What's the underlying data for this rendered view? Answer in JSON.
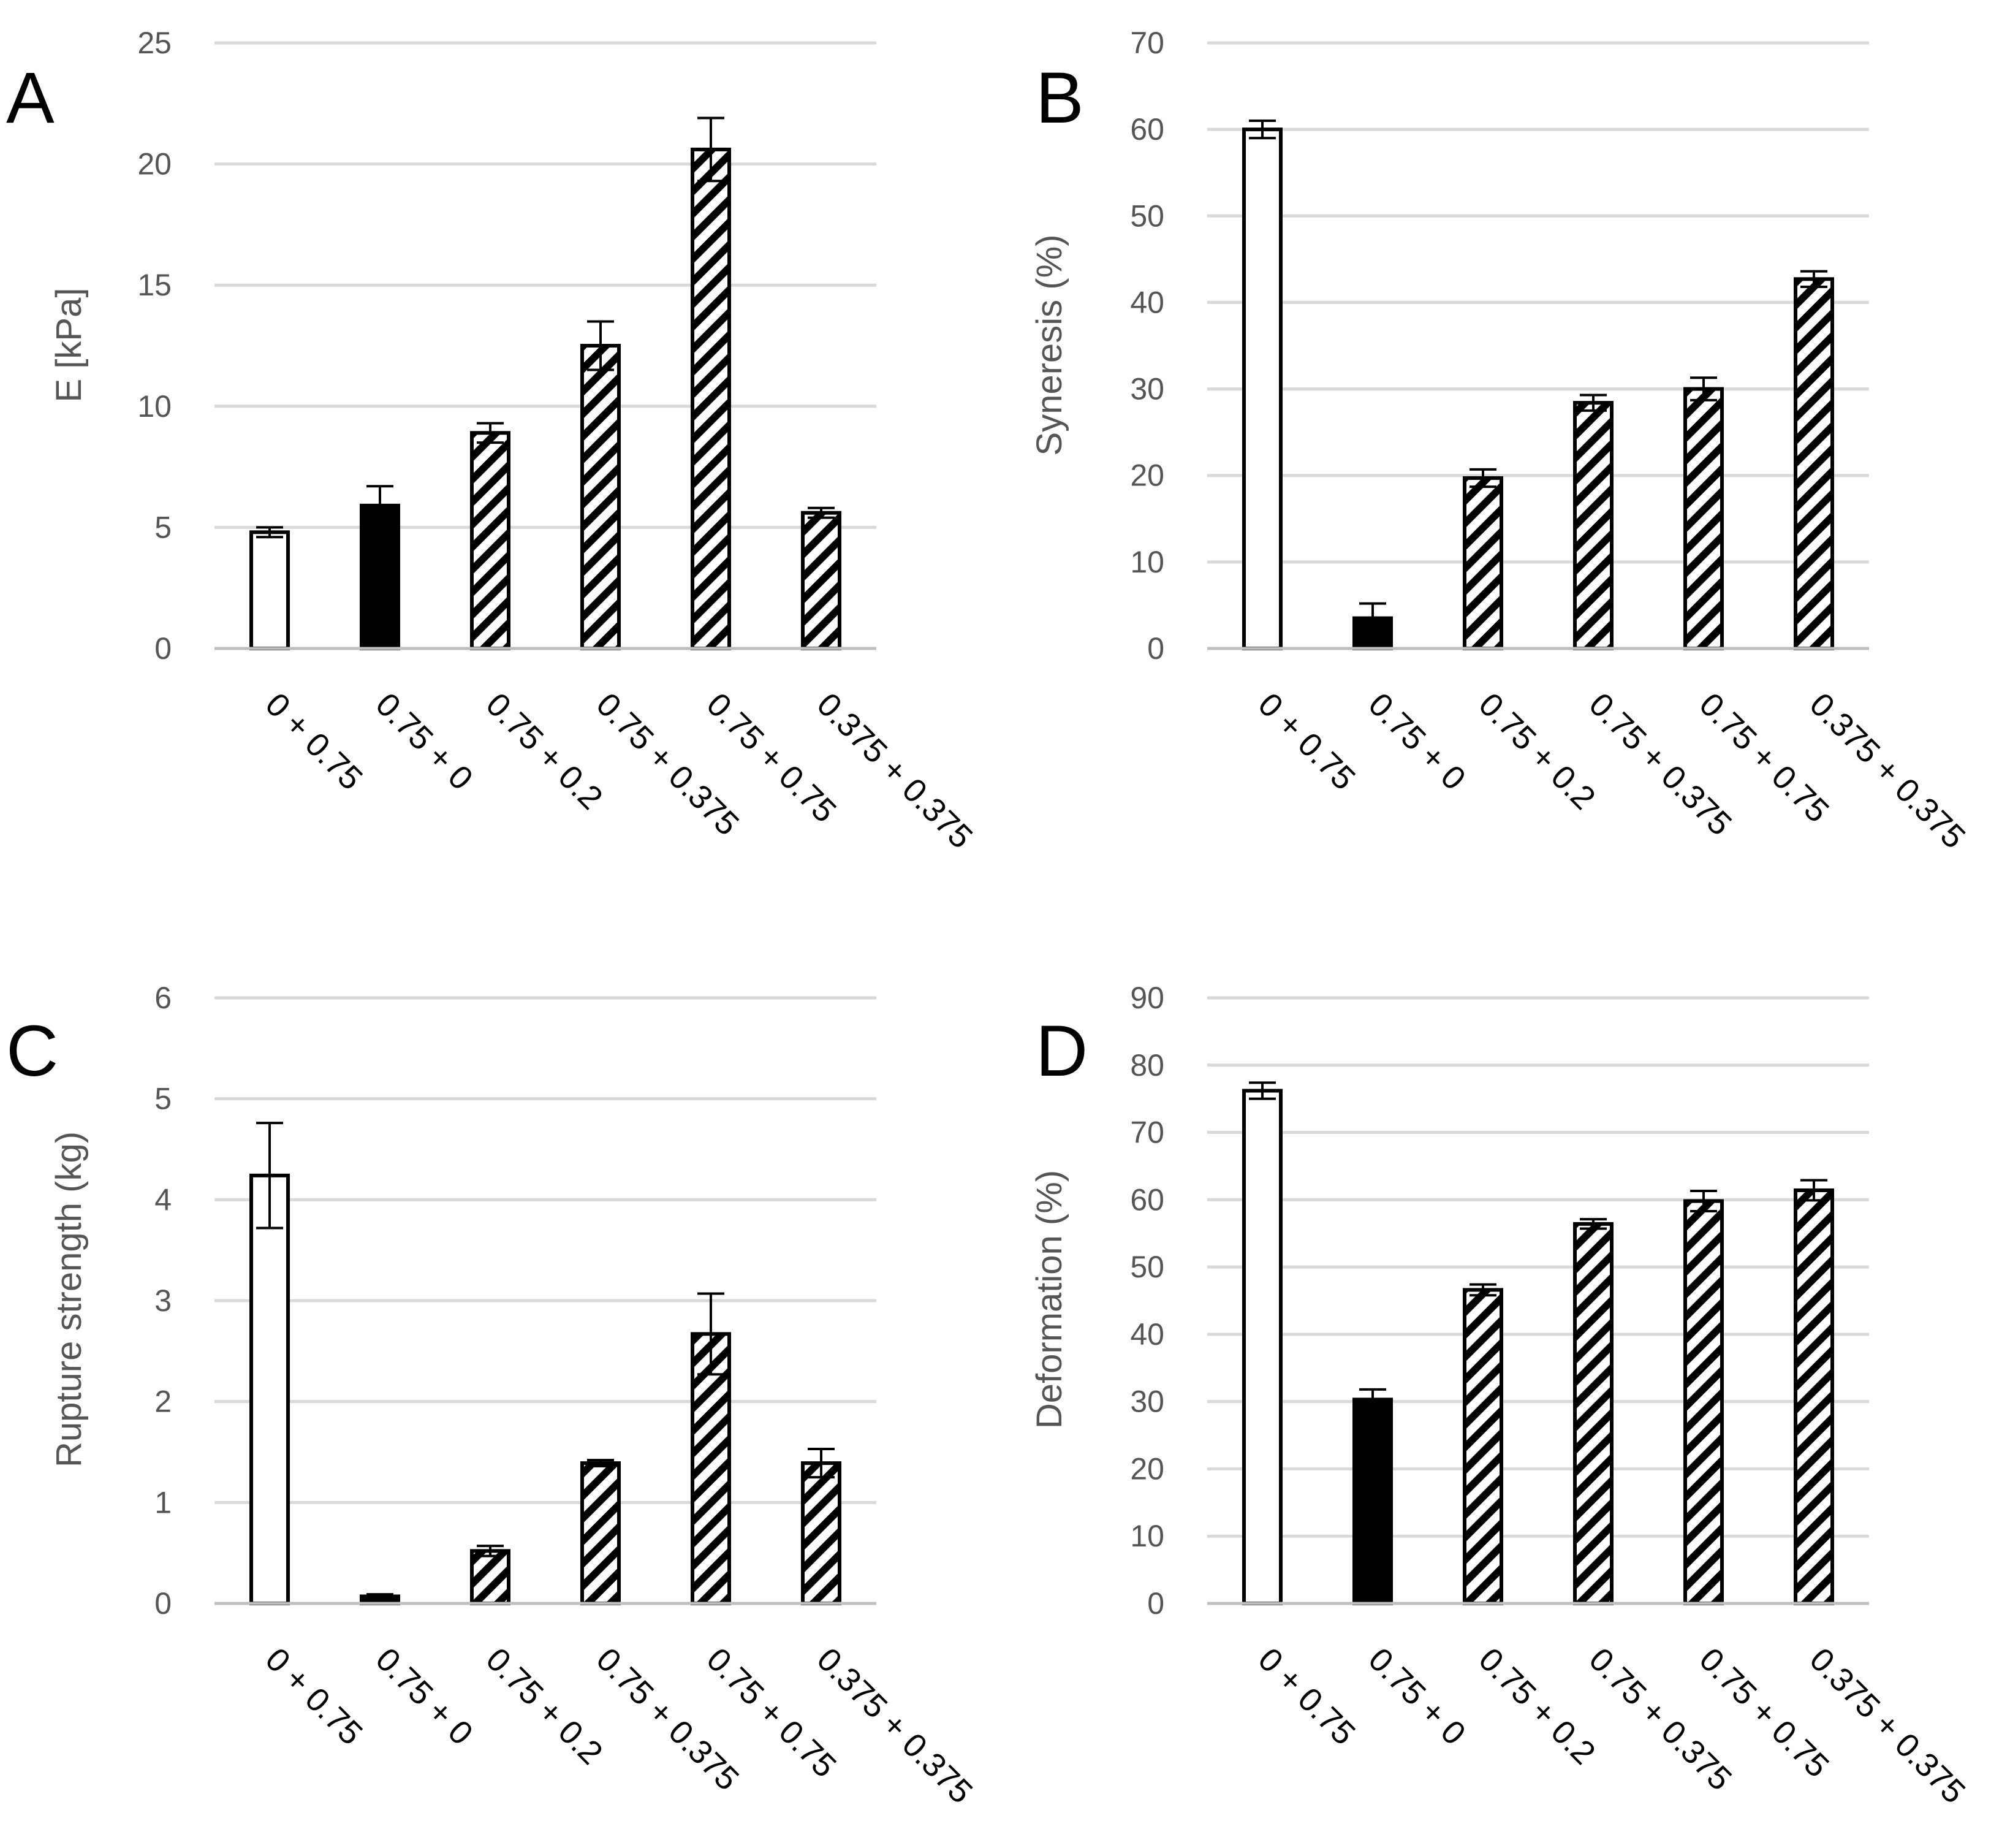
{
  "chart_data": [
    {
      "panel": "A",
      "type": "bar",
      "ylabel": "E [kPa]",
      "ylim": [
        0,
        25
      ],
      "yticks": [
        0,
        5,
        10,
        15,
        20,
        25
      ],
      "grid": true,
      "categories": [
        "0 + 0.75",
        "0.75 + 0",
        "0.75 + 0.2",
        "0.75 + 0.375",
        "0.75 + 0.75",
        "0.375 + 0.375"
      ],
      "values": [
        4.8,
        5.9,
        8.9,
        12.5,
        20.6,
        5.6
      ],
      "errors": [
        0.2,
        0.8,
        0.4,
        1.0,
        1.3,
        0.2
      ],
      "fills": [
        "white",
        "black",
        "hatch",
        "hatch",
        "hatch",
        "hatch"
      ]
    },
    {
      "panel": "B",
      "type": "bar",
      "ylabel": "Syneresis (%)",
      "ylim": [
        0,
        70
      ],
      "yticks": [
        0,
        10,
        20,
        30,
        40,
        50,
        60,
        70
      ],
      "grid": true,
      "categories": [
        "0 + 0.75",
        "0.75 + 0",
        "0.75 + 0.2",
        "0.75 + 0.375",
        "0.75 + 0.75",
        "0.375 + 0.375"
      ],
      "values": [
        60.0,
        3.5,
        19.7,
        28.4,
        30.0,
        42.7
      ],
      "errors": [
        1.0,
        1.7,
        1.0,
        0.9,
        1.3,
        0.9
      ],
      "fills": [
        "white",
        "black",
        "hatch",
        "hatch",
        "hatch",
        "hatch"
      ]
    },
    {
      "panel": "C",
      "type": "bar",
      "ylabel": "Rupture strength (kg)",
      "ylim": [
        0,
        6
      ],
      "yticks": [
        0,
        1,
        2,
        3,
        4,
        5,
        6
      ],
      "grid": true,
      "categories": [
        "0 + 0.75",
        "0.75 + 0",
        "0.75 + 0.2",
        "0.75 + 0.375",
        "0.75 + 0.75",
        "0.375 + 0.375"
      ],
      "values": [
        4.24,
        0.07,
        0.52,
        1.39,
        2.67,
        1.39
      ],
      "errors": [
        0.52,
        0.02,
        0.05,
        0.03,
        0.4,
        0.14
      ],
      "fills": [
        "white",
        "black",
        "hatch",
        "hatch",
        "hatch",
        "hatch"
      ]
    },
    {
      "panel": "D",
      "type": "bar",
      "ylabel": "Deformation (%)",
      "ylim": [
        0,
        90
      ],
      "yticks": [
        0,
        10,
        20,
        30,
        40,
        50,
        60,
        70,
        80,
        90
      ],
      "grid": true,
      "categories": [
        "0 + 0.75",
        "0.75 + 0",
        "0.75 + 0.2",
        "0.75 + 0.375",
        "0.75 + 0.75",
        "0.375 + 0.375"
      ],
      "values": [
        76.2,
        30.3,
        46.6,
        56.4,
        59.8,
        61.4
      ],
      "errors": [
        1.2,
        1.5,
        0.8,
        0.7,
        1.5,
        1.5
      ],
      "fills": [
        "white",
        "black",
        "hatch",
        "hatch",
        "hatch",
        "hatch"
      ]
    }
  ],
  "colors": {
    "bar_stroke": "#000000",
    "bar_black": "#000000",
    "bar_white": "#ffffff",
    "grid": "#d9d9d9",
    "axis": "#bfbfbf",
    "tick_text": "#555555"
  }
}
